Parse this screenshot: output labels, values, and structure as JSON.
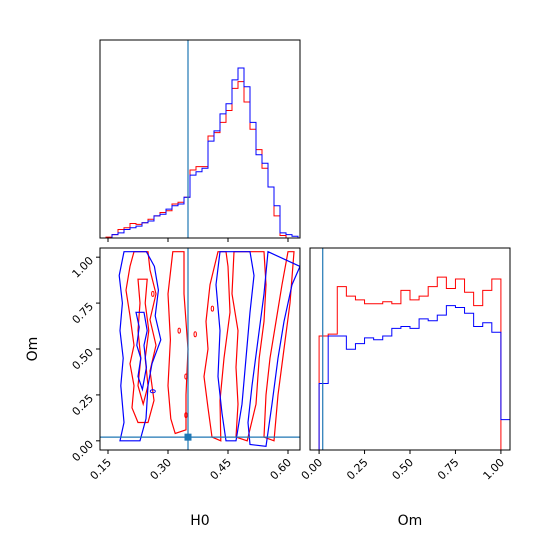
{
  "chart_data": {
    "type": "corner",
    "colors": {
      "red": "#ff0000",
      "blue": "#0000ff",
      "truth": "#1f77b4"
    },
    "truth": {
      "H0": 0.35,
      "Om": 0.02
    },
    "H0_axis": {
      "label": "H0",
      "range": [
        0.13,
        0.63
      ],
      "ticks": [
        0.15,
        0.3,
        0.45,
        0.6
      ],
      "tick_labels": [
        "0.15",
        "0.30",
        "0.45",
        "0.60"
      ]
    },
    "Om_axis": {
      "label": "Om",
      "range": [
        -0.05,
        1.05
      ],
      "ticks": [
        0.0,
        0.25,
        0.5,
        0.75,
        1.0
      ],
      "tick_labels": [
        "0.00",
        "0.25",
        "0.50",
        "0.75",
        "1.00"
      ]
    },
    "hist_H0": {
      "edges": [
        0.13,
        0.145,
        0.16,
        0.175,
        0.19,
        0.205,
        0.22,
        0.235,
        0.25,
        0.265,
        0.28,
        0.295,
        0.31,
        0.325,
        0.34,
        0.355,
        0.37,
        0.385,
        0.4,
        0.415,
        0.43,
        0.445,
        0.46,
        0.475,
        0.49,
        0.505,
        0.52,
        0.535,
        0.55,
        0.565,
        0.58,
        0.595,
        0.61,
        0.625
      ],
      "red": [
        0.0,
        0.005,
        0.02,
        0.05,
        0.06,
        0.085,
        0.08,
        0.09,
        0.11,
        0.13,
        0.15,
        0.16,
        0.2,
        0.21,
        0.24,
        0.4,
        0.42,
        0.42,
        0.6,
        0.62,
        0.68,
        0.75,
        0.88,
        0.92,
        0.8,
        0.64,
        0.52,
        0.41,
        0.3,
        0.13,
        0.015,
        0.0,
        0.0
      ],
      "blue": [
        0.0,
        0.0,
        0.02,
        0.03,
        0.05,
        0.06,
        0.07,
        0.09,
        0.1,
        0.13,
        0.14,
        0.17,
        0.19,
        0.2,
        0.24,
        0.37,
        0.39,
        0.41,
        0.57,
        0.63,
        0.73,
        0.79,
        0.93,
        1.0,
        0.89,
        0.68,
        0.49,
        0.44,
        0.3,
        0.19,
        0.03,
        0.02,
        0.01
      ]
    },
    "hist_Om": {
      "edges": [
        -0.05,
        0.0,
        0.05,
        0.1,
        0.15,
        0.2,
        0.25,
        0.3,
        0.35,
        0.4,
        0.45,
        0.5,
        0.55,
        0.6,
        0.65,
        0.7,
        0.75,
        0.8,
        0.85,
        0.9,
        0.95,
        1.0,
        1.05
      ],
      "red": [
        0.0,
        0.6,
        0.61,
        0.86,
        0.81,
        0.79,
        0.77,
        0.77,
        0.78,
        0.77,
        0.84,
        0.79,
        0.81,
        0.86,
        0.91,
        0.85,
        0.9,
        0.83,
        0.76,
        0.84,
        0.9,
        0.0
      ],
      "blue": [
        0.0,
        0.35,
        0.6,
        0.6,
        0.53,
        0.56,
        0.59,
        0.58,
        0.6,
        0.64,
        0.65,
        0.64,
        0.69,
        0.68,
        0.71,
        0.76,
        0.75,
        0.72,
        0.65,
        0.67,
        0.62,
        0.16
      ]
    },
    "contours": {
      "red": [
        [
          [
            0.215,
            1.03
          ],
          [
            0.205,
            0.95
          ],
          [
            0.195,
            0.82
          ],
          [
            0.205,
            0.68
          ],
          [
            0.215,
            0.52
          ],
          [
            0.205,
            0.42
          ],
          [
            0.215,
            0.3
          ],
          [
            0.21,
            0.18
          ],
          [
            0.225,
            0.1
          ],
          [
            0.25,
            0.1
          ],
          [
            0.265,
            0.22
          ],
          [
            0.255,
            0.38
          ],
          [
            0.27,
            0.52
          ],
          [
            0.255,
            0.66
          ],
          [
            0.27,
            0.8
          ],
          [
            0.255,
            0.93
          ],
          [
            0.25,
            1.03
          ]
        ],
        [
          [
            0.225,
            0.88
          ],
          [
            0.23,
            0.75
          ],
          [
            0.225,
            0.6
          ],
          [
            0.232,
            0.45
          ],
          [
            0.225,
            0.3
          ],
          [
            0.238,
            0.2
          ],
          [
            0.25,
            0.3
          ],
          [
            0.243,
            0.45
          ],
          [
            0.252,
            0.6
          ],
          [
            0.243,
            0.75
          ],
          [
            0.248,
            0.88
          ]
        ],
        [
          [
            0.312,
            1.03
          ],
          [
            0.3,
            0.8
          ],
          [
            0.306,
            0.55
          ],
          [
            0.3,
            0.3
          ],
          [
            0.307,
            0.12
          ],
          [
            0.318,
            0.04
          ],
          [
            0.345,
            0.06
          ],
          [
            0.345,
            0.25
          ],
          [
            0.35,
            0.5
          ],
          [
            0.34,
            0.8
          ],
          [
            0.34,
            1.03
          ]
        ],
        [
          [
            0.425,
            1.03
          ],
          [
            0.405,
            0.85
          ],
          [
            0.395,
            0.65
          ],
          [
            0.4,
            0.5
          ],
          [
            0.39,
            0.35
          ],
          [
            0.4,
            0.18
          ],
          [
            0.41,
            0.02
          ],
          [
            0.432,
            0.0
          ],
          [
            0.43,
            0.22
          ],
          [
            0.44,
            0.45
          ],
          [
            0.455,
            0.7
          ],
          [
            0.45,
            0.95
          ],
          [
            0.445,
            1.03
          ]
        ],
        [
          [
            0.465,
            1.03
          ],
          [
            0.46,
            0.8
          ],
          [
            0.475,
            0.6
          ],
          [
            0.47,
            0.4
          ],
          [
            0.475,
            0.2
          ],
          [
            0.47,
            0.02
          ],
          [
            0.498,
            0.0
          ],
          [
            0.52,
            0.2
          ],
          [
            0.528,
            0.45
          ],
          [
            0.54,
            0.65
          ],
          [
            0.545,
            0.85
          ],
          [
            0.54,
            1.03
          ]
        ],
        [
          [
            0.6,
            1.03
          ],
          [
            0.585,
            0.85
          ],
          [
            0.57,
            0.65
          ],
          [
            0.555,
            0.45
          ],
          [
            0.545,
            0.25
          ],
          [
            0.54,
            0.02
          ],
          [
            0.565,
            0.0
          ],
          [
            0.575,
            0.25
          ],
          [
            0.59,
            0.5
          ],
          [
            0.605,
            0.75
          ],
          [
            0.615,
            1.03
          ]
        ]
      ],
      "blue": [
        [
          [
            0.19,
            1.03
          ],
          [
            0.178,
            0.9
          ],
          [
            0.186,
            0.75
          ],
          [
            0.18,
            0.6
          ],
          [
            0.188,
            0.45
          ],
          [
            0.182,
            0.3
          ],
          [
            0.19,
            0.1
          ],
          [
            0.18,
            0.0
          ],
          [
            0.23,
            0.0
          ],
          [
            0.245,
            0.12
          ],
          [
            0.25,
            0.3
          ],
          [
            0.26,
            0.42
          ],
          [
            0.282,
            0.55
          ],
          [
            0.268,
            0.68
          ],
          [
            0.276,
            0.82
          ],
          [
            0.266,
            0.95
          ],
          [
            0.246,
            1.03
          ]
        ],
        [
          [
            0.22,
            0.7
          ],
          [
            0.228,
            0.62
          ],
          [
            0.222,
            0.52
          ],
          [
            0.232,
            0.45
          ],
          [
            0.225,
            0.35
          ],
          [
            0.236,
            0.28
          ],
          [
            0.246,
            0.4
          ],
          [
            0.24,
            0.52
          ],
          [
            0.248,
            0.6
          ],
          [
            0.24,
            0.7
          ]
        ],
        [
          [
            0.43,
            1.03
          ],
          [
            0.42,
            0.85
          ],
          [
            0.43,
            0.6
          ],
          [
            0.425,
            0.35
          ],
          [
            0.435,
            0.15
          ],
          [
            0.445,
            0.0
          ],
          [
            0.47,
            0.0
          ],
          [
            0.485,
            0.2
          ],
          [
            0.495,
            0.45
          ],
          [
            0.505,
            0.7
          ],
          [
            0.515,
            0.9
          ],
          [
            0.505,
            1.03
          ]
        ],
        [
          [
            0.55,
            1.03
          ],
          [
            0.54,
            0.8
          ],
          [
            0.525,
            0.55
          ],
          [
            0.51,
            0.3
          ],
          [
            0.5,
            0.1
          ],
          [
            0.505,
            -0.02
          ],
          [
            0.545,
            -0.03
          ],
          [
            0.56,
            0.2
          ],
          [
            0.575,
            0.45
          ],
          [
            0.59,
            0.65
          ],
          [
            0.61,
            0.85
          ],
          [
            0.63,
            0.95
          ]
        ]
      ]
    }
  }
}
